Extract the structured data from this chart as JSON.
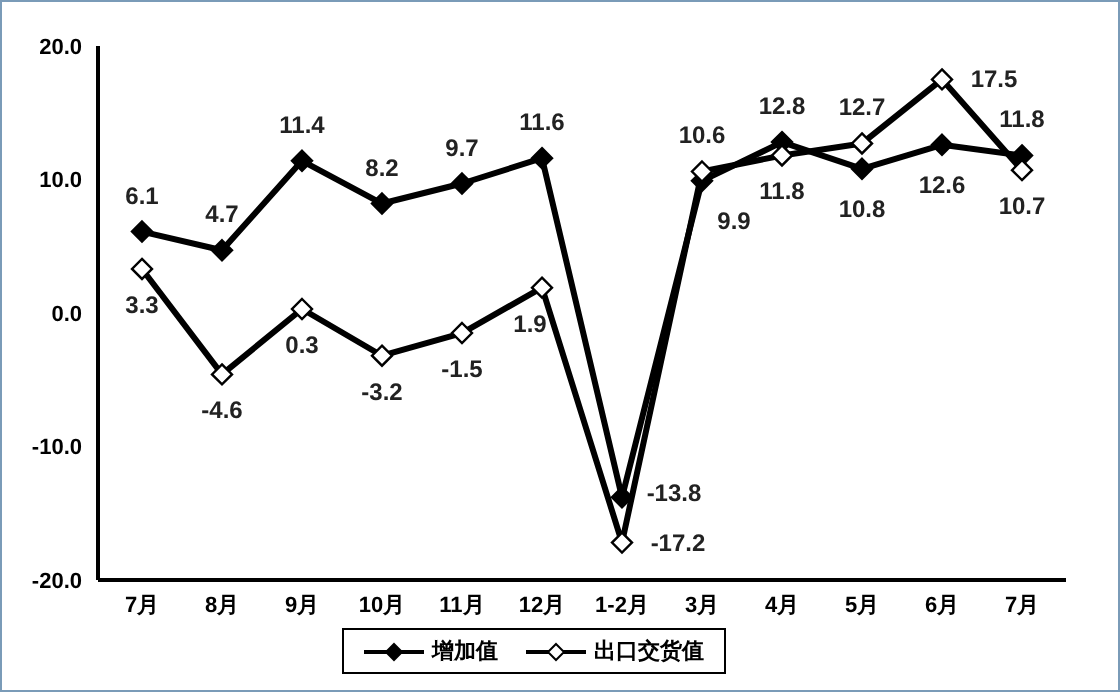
{
  "chart_data": {
    "type": "line",
    "categories": [
      "7月",
      "8月",
      "9月",
      "10月",
      "11月",
      "12月",
      "1-2月",
      "3月",
      "4月",
      "5月",
      "6月",
      "7月"
    ],
    "series": [
      {
        "name": "增加值",
        "color": "#000000",
        "values": [
          6.1,
          4.7,
          11.4,
          8.2,
          9.7,
          11.6,
          -13.8,
          9.9,
          12.8,
          10.8,
          12.6,
          11.8
        ]
      },
      {
        "name": "出口交货值",
        "color": "#000000",
        "values": [
          3.3,
          -4.6,
          0.3,
          -3.2,
          -1.5,
          1.9,
          -17.2,
          10.6,
          11.8,
          12.7,
          17.5,
          10.7
        ]
      }
    ],
    "ylim": [
      -20,
      20
    ],
    "yticks": [
      {
        "value": -20,
        "label": "-20.0"
      },
      {
        "value": -10,
        "label": "-10.0"
      },
      {
        "value": 0,
        "label": "0.0"
      },
      {
        "value": 10,
        "label": "10.0"
      },
      {
        "value": 20,
        "label": "20.0"
      }
    ],
    "grid": false,
    "legend": "bottom",
    "marker": "diamond",
    "line_style": "solid",
    "data_labels": true
  }
}
